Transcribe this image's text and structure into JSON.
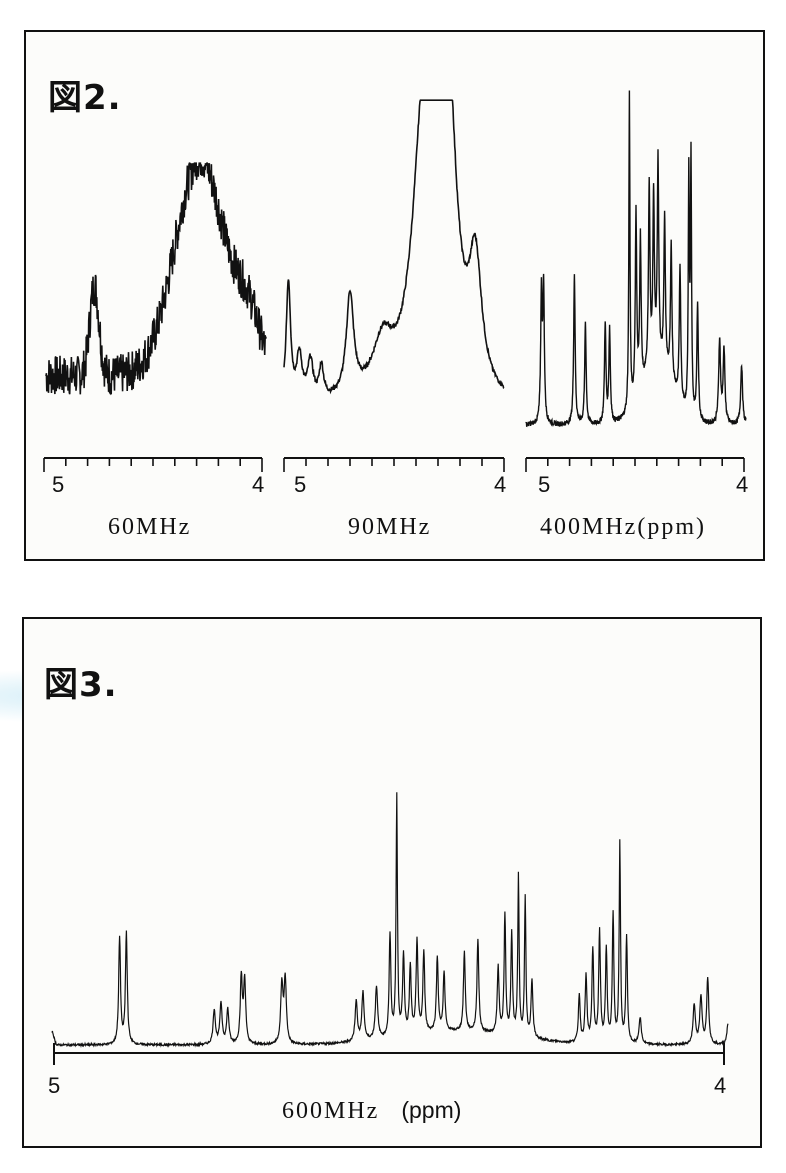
{
  "chart_data": [
    {
      "type": "line",
      "figure_label": "図2.",
      "panels": [
        {
          "name": "60MHz",
          "label": "60MHz",
          "xlim": [
            5,
            4
          ],
          "ticks": [
            "5",
            "4"
          ],
          "description_level": "broad noisy envelope",
          "peaks_ppm": [
            4.78,
            4.38,
            4.3,
            4.22
          ]
        },
        {
          "name": "90MHz",
          "label": "90MHz",
          "xlim": [
            5,
            4
          ],
          "ticks": [
            "5",
            "4"
          ],
          "peaks_ppm": [
            5.0,
            4.93,
            4.88,
            4.7,
            4.37,
            4.25,
            4.13
          ]
        },
        {
          "name": "400MHz",
          "label": "400MHz(ppm)",
          "xlim": [
            5,
            4
          ],
          "ticks": [
            "5",
            "4"
          ],
          "peaks_ppm": [
            4.93,
            4.88,
            4.78,
            4.73,
            4.53,
            4.5,
            4.42,
            4.38,
            4.34,
            4.27,
            4.25,
            4.12,
            4.03
          ]
        }
      ]
    },
    {
      "type": "line",
      "figure_label": "図3.",
      "panels": [
        {
          "name": "600MHz",
          "label": "600MHz",
          "unit": "(ppm)",
          "xlim": [
            5,
            4
          ],
          "ticks": [
            "5",
            "4"
          ],
          "peaks_ppm": [
            4.9,
            4.89,
            4.77,
            4.76,
            4.72,
            4.71,
            4.62,
            4.58,
            4.57,
            4.51,
            4.49,
            4.47,
            4.46,
            4.44,
            4.39,
            4.37,
            4.33,
            4.31,
            4.3,
            4.29,
            4.21,
            4.19,
            4.18,
            4.16,
            4.14,
            4.08,
            4.06,
            4.01
          ]
        }
      ]
    }
  ]
}
